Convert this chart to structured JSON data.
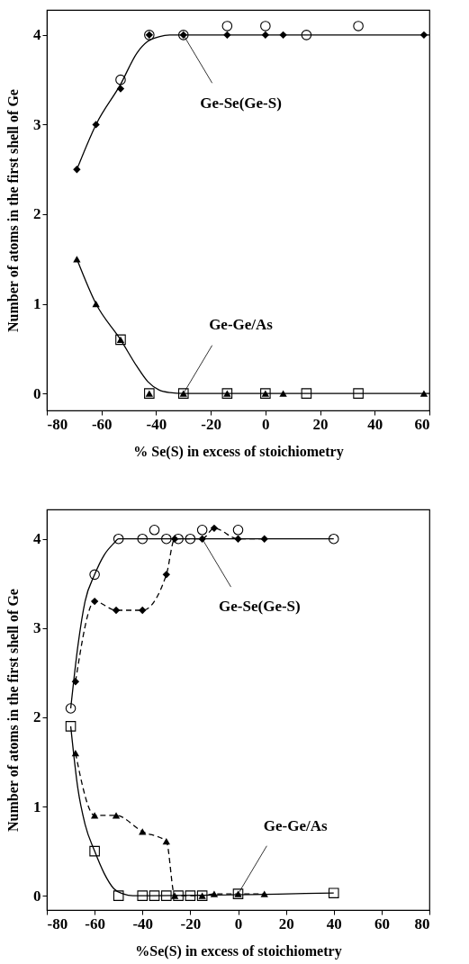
{
  "chart_data": [
    {
      "type": "scatter",
      "xlabel": "% Se(S) in excess of stoichiometry",
      "ylabel": "Number of atoms in the first shell of Ge",
      "xlim": [
        -80,
        60
      ],
      "xticks": [
        -80,
        -60,
        -40,
        -20,
        0,
        20,
        40,
        60
      ],
      "ylim": [
        -0.19,
        4.28
      ],
      "yticks": [
        0,
        1,
        2,
        3,
        4
      ],
      "grid": false,
      "series": [
        {
          "type": "line",
          "color": "#000000",
          "marker": "none",
          "line_style": "solid",
          "x": [
            -69,
            -62,
            -53,
            -47,
            -43,
            -39,
            -35,
            -30,
            60
          ],
          "values": [
            2.5,
            3.0,
            3.45,
            3.8,
            3.93,
            3.98,
            4.0,
            4.0,
            4.0
          ]
        },
        {
          "type": "line",
          "color": "#000000",
          "marker": "none",
          "line_style": "solid",
          "x": [
            -69,
            -62,
            -53,
            -47,
            -43,
            -39,
            -35,
            -30,
            60
          ],
          "values": [
            1.5,
            1.0,
            0.6,
            0.3,
            0.13,
            0.04,
            0.01,
            0.0,
            0.0
          ]
        },
        {
          "type": "scatter",
          "color": "#000000",
          "marker": "diamond",
          "x": [
            -69,
            -62,
            -53,
            -42.5,
            -30,
            -14,
            0,
            6.5,
            58
          ],
          "values": [
            2.5,
            3.0,
            3.4,
            4.0,
            4.0,
            4.0,
            4.0,
            4.0,
            4.0
          ]
        },
        {
          "type": "scatter",
          "color": "#000000",
          "marker": "circle",
          "x": [
            -53,
            -42.5,
            -30,
            -14,
            0,
            15,
            34
          ],
          "values": [
            3.5,
            4.0,
            4.0,
            4.1,
            4.1,
            4.0,
            4.1
          ]
        },
        {
          "type": "scatter",
          "color": "#000000",
          "marker": "square",
          "x": [
            -53,
            -42.5,
            -30,
            -14,
            0,
            15,
            34
          ],
          "values": [
            0.6,
            0.0,
            0.0,
            0.0,
            0.0,
            0.0,
            0.0
          ]
        },
        {
          "type": "scatter",
          "color": "#000000",
          "marker": "triangle",
          "x": [
            -69,
            -62,
            -53,
            -42.5,
            -30,
            -14,
            0,
            6.5,
            58
          ],
          "values": [
            1.5,
            1.0,
            0.6,
            0.0,
            0.0,
            0.0,
            0.0,
            0.0,
            0.0
          ]
        }
      ],
      "annotations": [
        {
          "text": "Ge-Se(Ge-S)",
          "x": -30,
          "y": 4.0
        },
        {
          "text": "Ge-Ge/As",
          "x": -30,
          "y": 0.0
        }
      ]
    },
    {
      "type": "scatter",
      "xlabel": "%Se(S) in excess of stoichiometry",
      "ylabel": "Number of atoms in the first shell of Ge",
      "xlim": [
        -80,
        80
      ],
      "xticks": [
        -80,
        -60,
        -40,
        -20,
        0,
        20,
        40,
        60,
        80
      ],
      "ylim": [
        -0.16,
        4.33
      ],
      "yticks": [
        0,
        1,
        2,
        3,
        4
      ],
      "grid": false,
      "series": [
        {
          "type": "line",
          "color": "#000000",
          "marker": "none",
          "line_style": "solid",
          "x": [
            -70,
            -67,
            -64,
            -60,
            -56,
            -52,
            -50,
            -45,
            40
          ],
          "values": [
            2.1,
            2.8,
            3.3,
            3.6,
            3.82,
            3.95,
            4.0,
            4.0,
            4.0
          ]
        },
        {
          "type": "line",
          "color": "#000000",
          "marker": "none",
          "line_style": "solid",
          "x": [
            -70,
            -67,
            -64,
            -60,
            -56,
            -52,
            -48,
            -44,
            40
          ],
          "values": [
            1.9,
            1.2,
            0.8,
            0.5,
            0.25,
            0.08,
            0.02,
            0.0,
            0.03
          ]
        },
        {
          "type": "line",
          "color": "#000000",
          "marker": "diamond",
          "line_style": "dashed",
          "x": [
            -68,
            -60,
            -51,
            -40,
            -30,
            -26.5,
            -15,
            -10,
            0,
            11
          ],
          "values": [
            2.4,
            3.3,
            3.2,
            3.2,
            3.6,
            4.0,
            4.0,
            4.12,
            4.0,
            4.0
          ]
        },
        {
          "type": "line",
          "color": "#000000",
          "marker": "triangle",
          "line_style": "dashed",
          "x": [
            -68,
            -60,
            -51,
            -40,
            -30,
            -26.5,
            -15,
            -10,
            0,
            11
          ],
          "values": [
            1.6,
            0.9,
            0.9,
            0.72,
            0.61,
            0.0,
            0.0,
            0.02,
            0.02,
            0.02
          ]
        },
        {
          "type": "scatter",
          "color": "#000000",
          "marker": "circle",
          "x": [
            -70,
            -60,
            -50,
            -40,
            -35,
            -30,
            -25,
            -20,
            -15,
            0,
            40
          ],
          "values": [
            2.1,
            3.6,
            4.0,
            4.0,
            4.1,
            4.0,
            4.0,
            4.0,
            4.1,
            4.1,
            4.0
          ]
        },
        {
          "type": "scatter",
          "color": "#000000",
          "marker": "square",
          "x": [
            -70,
            -60,
            -50,
            -40,
            -35,
            -30,
            -25,
            -20,
            -15,
            0,
            40
          ],
          "values": [
            1.9,
            0.5,
            0.0,
            0.0,
            0.0,
            0.0,
            0.0,
            0.0,
            0.0,
            0.02,
            0.03
          ]
        }
      ],
      "annotations": [
        {
          "text": "Ge-Se(Ge-S)",
          "x": -15,
          "y": 4.0
        },
        {
          "text": "Ge-Ge/As",
          "x": 0,
          "y": 0.02
        }
      ]
    }
  ]
}
